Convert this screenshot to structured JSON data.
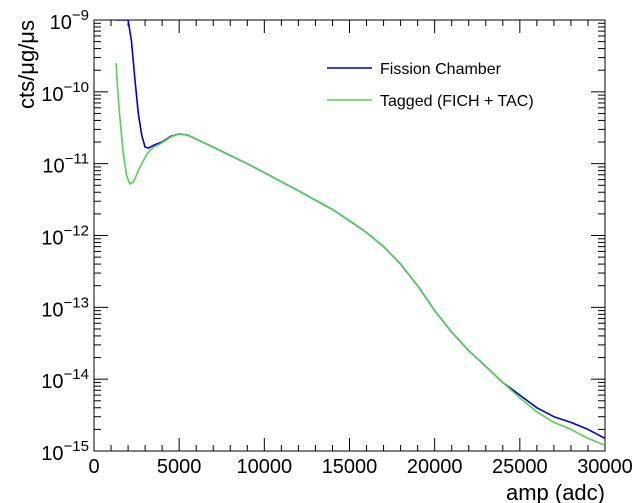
{
  "chart_data": {
    "type": "line",
    "title": "",
    "xlabel": "amp (adc)",
    "ylabel": "cts/μg/μs",
    "x_scale": "linear",
    "y_scale": "log",
    "xlim": [
      0,
      30000
    ],
    "ylim": [
      1e-15,
      1e-09
    ],
    "x_ticks": [
      {
        "value": 0,
        "label": "0"
      },
      {
        "value": 5000,
        "label": "5000"
      },
      {
        "value": 10000,
        "label": "10000"
      },
      {
        "value": 15000,
        "label": "15000"
      },
      {
        "value": 20000,
        "label": "20000"
      },
      {
        "value": 25000,
        "label": "25000"
      },
      {
        "value": 30000,
        "label": "30000"
      }
    ],
    "y_ticks": [
      {
        "value": 1e-15,
        "base": "10",
        "exp": "−15"
      },
      {
        "value": 1e-14,
        "base": "10",
        "exp": "−14"
      },
      {
        "value": 1e-13,
        "base": "10",
        "exp": "−13"
      },
      {
        "value": 1e-12,
        "base": "10",
        "exp": "−12"
      },
      {
        "value": 1e-11,
        "base": "10",
        "exp": "−11"
      },
      {
        "value": 1e-10,
        "base": "10",
        "exp": "−10"
      },
      {
        "value": 1e-09,
        "base": "10",
        "exp": "−9"
      }
    ],
    "grid": false,
    "legend_position": "top-right",
    "series": [
      {
        "name": "Fission Chamber",
        "color": "#0000cc",
        "x": [
          1300,
          1500,
          1800,
          2000,
          2200,
          2400,
          2600,
          2800,
          3000,
          3200,
          3500,
          4000,
          4500,
          5000,
          5500,
          6000,
          7000,
          8000,
          9000,
          10000,
          11000,
          12000,
          13000,
          14000,
          15000,
          16000,
          17000,
          18000,
          19000,
          20000,
          21000,
          22000,
          23000,
          24000,
          25000,
          26000,
          27000,
          28000,
          29000,
          30000
        ],
        "y": [
          1e-09,
          1e-09,
          1e-09,
          1e-09,
          5e-10,
          1.5e-10,
          5e-11,
          2.5e-11,
          1.7e-11,
          1.65e-11,
          1.8e-11,
          2e-11,
          2.4e-11,
          2.6e-11,
          2.5e-11,
          2.2e-11,
          1.7e-11,
          1.3e-11,
          1e-11,
          7.5e-12,
          5.6e-12,
          4.2e-12,
          3.1e-12,
          2.3e-12,
          1.6e-12,
          1.1e-12,
          7e-13,
          4e-13,
          2e-13,
          9e-14,
          4.5e-14,
          2.5e-14,
          1.5e-14,
          9e-15,
          6e-15,
          4e-15,
          3e-15,
          2.5e-15,
          2e-15,
          1.5e-15
        ]
      },
      {
        "name": "Tagged (FICH + TAC)",
        "color": "#55d055",
        "x": [
          1300,
          1400,
          1500,
          1700,
          1900,
          2100,
          2300,
          2500,
          2700,
          2900,
          3100,
          3300,
          3600,
          4000,
          4500,
          5000,
          5500,
          6000,
          7000,
          8000,
          9000,
          10000,
          11000,
          12000,
          13000,
          14000,
          15000,
          16000,
          17000,
          18000,
          19000,
          20000,
          21000,
          22000,
          23000,
          24000,
          25000,
          26000,
          27000,
          28000,
          29000,
          30000
        ],
        "y": [
          2.5e-10,
          1e-10,
          5e-11,
          1.5e-11,
          7e-12,
          5.2e-12,
          5.5e-12,
          7e-12,
          9e-12,
          1.1e-11,
          1.35e-11,
          1.55e-11,
          1.75e-11,
          1.95e-11,
          2.35e-11,
          2.6e-11,
          2.5e-11,
          2.2e-11,
          1.7e-11,
          1.3e-11,
          1e-11,
          7.5e-12,
          5.6e-12,
          4.2e-12,
          3.1e-12,
          2.3e-12,
          1.6e-12,
          1.1e-12,
          7e-13,
          4e-13,
          2e-13,
          9e-14,
          4.5e-14,
          2.5e-14,
          1.5e-14,
          9e-15,
          5.5e-15,
          3.5e-15,
          2.5e-15,
          2e-15,
          1.5e-15,
          1.2e-15
        ]
      }
    ]
  }
}
